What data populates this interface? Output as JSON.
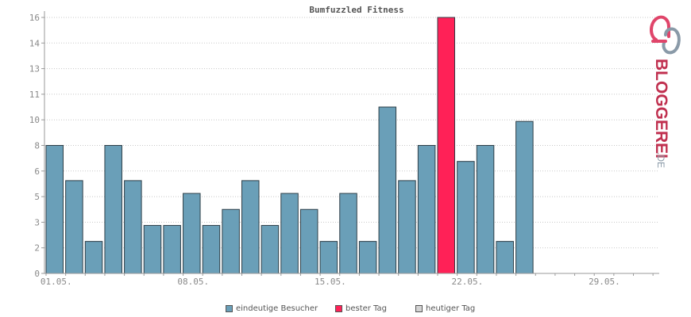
{
  "chart_data": {
    "type": "bar",
    "title": "Bumfuzzled Fitness",
    "y_ticks": [
      "0",
      "2",
      "3",
      "5",
      "6",
      "8",
      "10",
      "11",
      "13",
      "14",
      "16"
    ],
    "x_ticks": [
      {
        "day": 1,
        "label": "01.05."
      },
      {
        "day": 8,
        "label": "08.05."
      },
      {
        "day": 15,
        "label": "15.05."
      },
      {
        "day": 22,
        "label": "22.05."
      },
      {
        "day": 29,
        "label": "29.05."
      }
    ],
    "ylim": [
      0,
      16
    ],
    "grid": true,
    "days": [
      1,
      2,
      3,
      4,
      5,
      6,
      7,
      8,
      9,
      10,
      11,
      12,
      13,
      14,
      15,
      16,
      17,
      18,
      19,
      20,
      21,
      22,
      23,
      24,
      25,
      26,
      27,
      28,
      29,
      30,
      31
    ],
    "series": [
      {
        "name": "eindeutige Besucher",
        "color": "#6a9fb8",
        "values": [
          8,
          5.8,
          2,
          8,
          5.8,
          3,
          3,
          5,
          3,
          4,
          5.8,
          3,
          5,
          4,
          2,
          5,
          2,
          10.4,
          5.8,
          8,
          0,
          7,
          8,
          2,
          9.5,
          0,
          0,
          0,
          0,
          0,
          0
        ]
      },
      {
        "name": "bester Tag",
        "color": "#ff2157",
        "values": [
          0,
          0,
          0,
          0,
          0,
          0,
          0,
          0,
          0,
          0,
          0,
          0,
          0,
          0,
          0,
          0,
          0,
          0,
          0,
          0,
          16,
          0,
          0,
          0,
          0,
          0,
          0,
          0,
          0,
          0,
          0
        ]
      }
    ],
    "legend": {
      "placement": "bottom-center",
      "items": [
        {
          "label": "eindeutige Besucher",
          "color": "#6a9fb8"
        },
        {
          "label": "bester Tag",
          "color": "#ff2157"
        },
        {
          "label": "heutiger Tag",
          "color": "#d3d3d3"
        }
      ]
    }
  },
  "logo": {
    "text_main": "BLOGGEREI",
    "text_suffix": ".DE",
    "colors": {
      "pink": "#e0456a",
      "grey": "#8a9aa8",
      "dark": "#c0304f"
    }
  }
}
